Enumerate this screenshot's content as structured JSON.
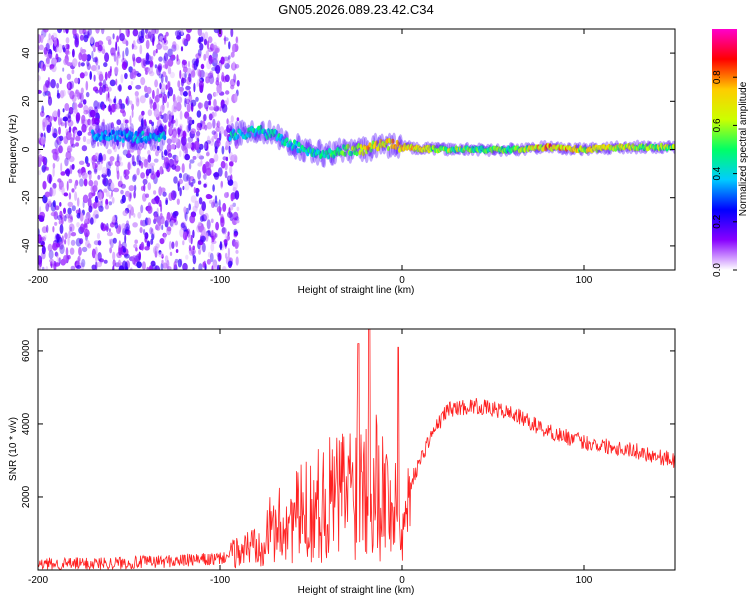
{
  "title": "GN05.2026.089.23.42.C34",
  "chart_data": [
    {
      "type": "heatmap",
      "title": "",
      "xlabel": "Height of straight line (km)",
      "ylabel": "Frequency (Hz)",
      "xlim": [
        -200,
        150
      ],
      "ylim": [
        -50,
        50
      ],
      "xticks": [
        -200,
        -100,
        0,
        100
      ],
      "yticks": [
        -40,
        -20,
        0,
        20,
        40
      ],
      "colorbar": {
        "label": "Normalized spectral amplitude",
        "range": [
          0,
          1
        ],
        "ticks": [
          "0.0",
          "0.2",
          "0.4",
          "0.6",
          "0.8"
        ],
        "colors": [
          "#ffffff",
          "#8800ff",
          "#0000ff",
          "#00ccff",
          "#00ff66",
          "#ccff00",
          "#ffcc00",
          "#ff0000",
          "#ff00cc"
        ]
      },
      "noise_region": {
        "x_range": [
          -200,
          -90
        ],
        "freq_range": [
          -50,
          50
        ],
        "amplitude": 0.15
      },
      "ridge": [
        {
          "x": -168,
          "f": 6,
          "a": 0.35
        },
        {
          "x": -140,
          "f": 5,
          "a": 0.4
        },
        {
          "x": -90,
          "f": 6,
          "a": 0.45
        },
        {
          "x": -80,
          "f": 8,
          "a": 0.45
        },
        {
          "x": -70,
          "f": 6,
          "a": 0.45
        },
        {
          "x": -60,
          "f": 2,
          "a": 0.45
        },
        {
          "x": -50,
          "f": -1,
          "a": 0.45
        },
        {
          "x": -40,
          "f": -2,
          "a": 0.5
        },
        {
          "x": -30,
          "f": 0,
          "a": 0.55
        },
        {
          "x": -20,
          "f": 0,
          "a": 0.75
        },
        {
          "x": -12,
          "f": 2,
          "a": 0.7
        },
        {
          "x": -5,
          "f": 2,
          "a": 0.75
        },
        {
          "x": 0,
          "f": 1,
          "a": 0.8
        },
        {
          "x": 20,
          "f": 0,
          "a": 0.6
        },
        {
          "x": 40,
          "f": 0,
          "a": 0.55
        },
        {
          "x": 60,
          "f": 0,
          "a": 0.55
        },
        {
          "x": 80,
          "f": 1,
          "a": 0.8
        },
        {
          "x": 100,
          "f": 0,
          "a": 0.7
        },
        {
          "x": 120,
          "f": 1,
          "a": 0.65
        },
        {
          "x": 150,
          "f": 1,
          "a": 0.6
        }
      ]
    },
    {
      "type": "line",
      "title": "",
      "xlabel": "Height of straight line (km)",
      "ylabel": "SNR (10 * v/v)",
      "xlim": [
        -200,
        150
      ],
      "ylim": [
        0,
        6600
      ],
      "xticks": [
        -200,
        -100,
        0,
        100
      ],
      "yticks": [
        2000,
        4000,
        6000
      ],
      "series": [
        {
          "name": "SNR",
          "color": "#ff2020",
          "trend": [
            {
              "x": -200,
              "y": 150
            },
            {
              "x": -150,
              "y": 200
            },
            {
              "x": -100,
              "y": 300
            },
            {
              "x": -85,
              "y": 600
            },
            {
              "x": -75,
              "y": 1000
            },
            {
              "x": -60,
              "y": 1400
            },
            {
              "x": -45,
              "y": 1800
            },
            {
              "x": -30,
              "y": 2200
            },
            {
              "x": -20,
              "y": 2700
            },
            {
              "x": -15,
              "y": 2500
            },
            {
              "x": -5,
              "y": 1800
            },
            {
              "x": 0,
              "y": 900
            },
            {
              "x": 5,
              "y": 2400
            },
            {
              "x": 15,
              "y": 3600
            },
            {
              "x": 25,
              "y": 4400
            },
            {
              "x": 40,
              "y": 4500
            },
            {
              "x": 60,
              "y": 4300
            },
            {
              "x": 80,
              "y": 3800
            },
            {
              "x": 100,
              "y": 3500
            },
            {
              "x": 125,
              "y": 3300
            },
            {
              "x": 150,
              "y": 3000
            }
          ],
          "peaks": [
            {
              "x": -24,
              "y": 6200
            },
            {
              "x": -18,
              "y": 6600
            },
            {
              "x": -2,
              "y": 6100
            }
          ]
        }
      ]
    }
  ]
}
